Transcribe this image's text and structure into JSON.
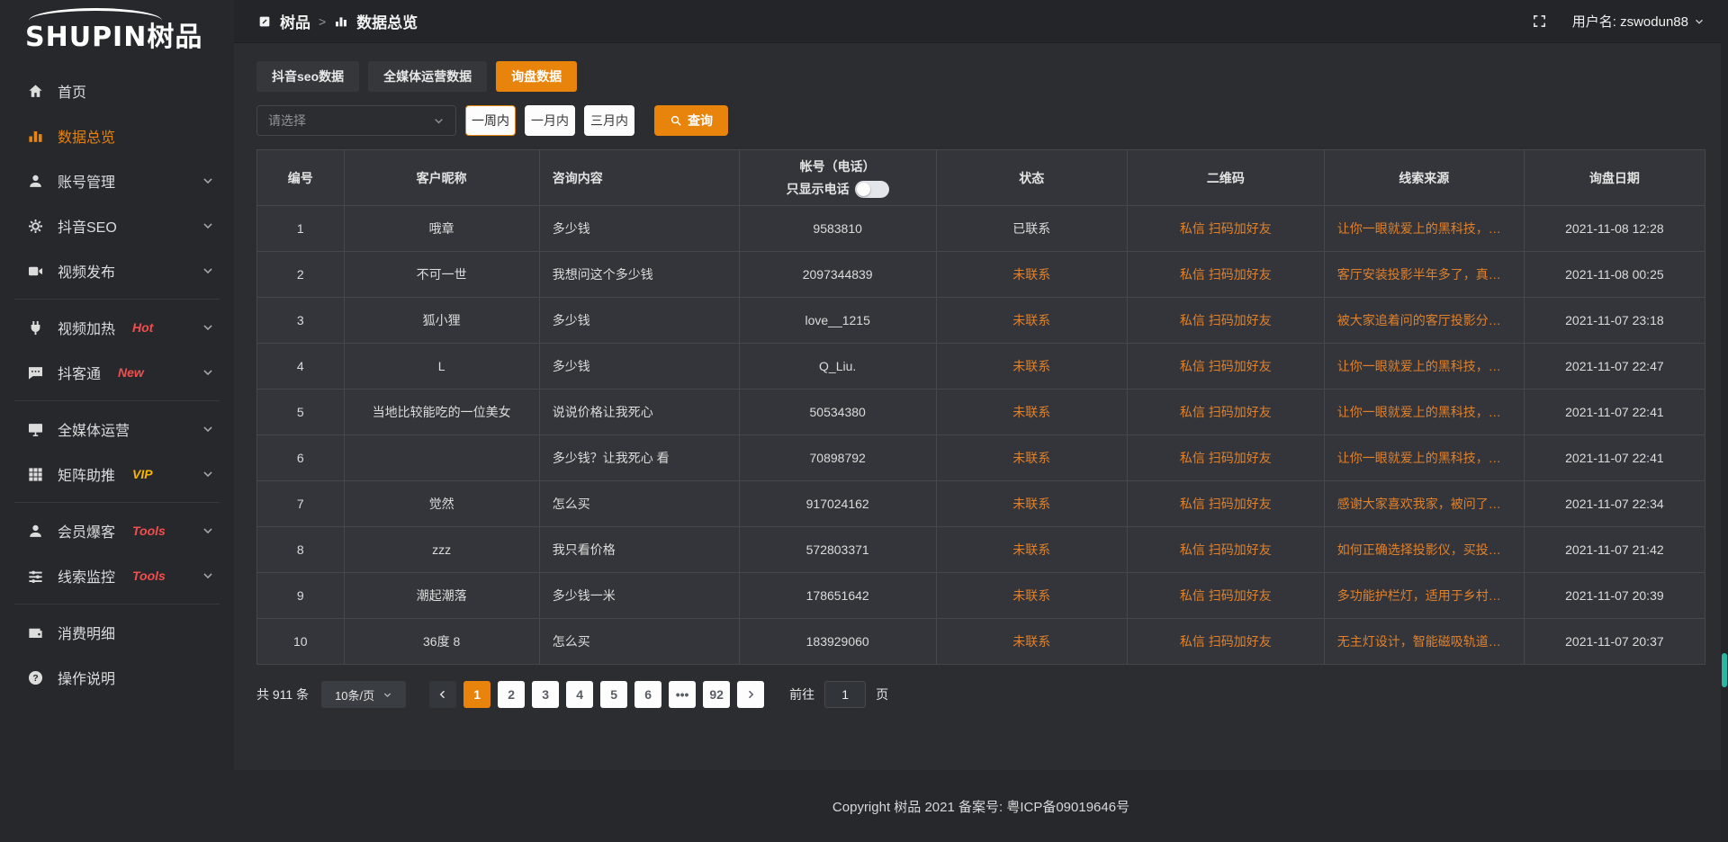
{
  "colors": {
    "accent": "#e8830c",
    "link_orange": "#e0812c",
    "hot_red": "#f24e4e",
    "vip_yellow": "#f7b500",
    "teal_scroll": "#2ab5a5"
  },
  "sidebar": {
    "logo": "SHUPIN树品",
    "items": [
      {
        "key": "home",
        "icon": "home-icon",
        "label": "首页"
      },
      {
        "key": "data-overview",
        "icon": "chart-icon",
        "label": "数据总览",
        "active": true
      },
      {
        "key": "account-manage",
        "icon": "user-icon",
        "label": "账号管理",
        "chevron": true
      },
      {
        "key": "douyin-seo",
        "icon": "gear-icon",
        "label": "抖音SEO",
        "chevron": true
      },
      {
        "key": "video-publish",
        "icon": "video-icon",
        "label": "视频发布",
        "chevron": true
      },
      {
        "divider": true
      },
      {
        "key": "video-heat",
        "icon": "plug-icon",
        "label": "视频加热",
        "badge": "Hot",
        "badge_color": "#f24e4e",
        "chevron": true
      },
      {
        "key": "douketong",
        "icon": "chat-icon",
        "label": "抖客通",
        "badge": "New",
        "badge_color": "#f24e4e",
        "chevron": true
      },
      {
        "divider": true
      },
      {
        "key": "omni-media",
        "icon": "monitor-icon",
        "label": "全媒体运营",
        "chevron": true
      },
      {
        "key": "matrix-boost",
        "icon": "grid-icon",
        "label": "矩阵助推",
        "badge": "VIP",
        "badge_color": "#f7b500",
        "chevron": true
      },
      {
        "divider": true
      },
      {
        "key": "member-baoke",
        "icon": "user-icon",
        "label": "会员爆客",
        "badge": "Tools",
        "badge_color": "#f24e4e",
        "chevron": true
      },
      {
        "key": "clue-monitor",
        "icon": "sliders-icon",
        "label": "线索监控",
        "badge": "Tools",
        "badge_color": "#f24e4e",
        "chevron": true
      },
      {
        "divider": true
      },
      {
        "key": "expense-detail",
        "icon": "wallet-icon",
        "label": "消费明细"
      },
      {
        "key": "help",
        "icon": "question-icon",
        "label": "操作说明"
      }
    ]
  },
  "topbar": {
    "breadcrumb_home": "树品",
    "breadcrumb_sep": ">",
    "breadcrumb_current": "数据总览",
    "user_label": "用户名: zswodun88"
  },
  "tabs": [
    {
      "label": "抖音seo数据"
    },
    {
      "label": "全媒体运营数据"
    },
    {
      "label": "询盘数据",
      "active": true
    }
  ],
  "filters": {
    "select_placeholder": "请选择",
    "ranges": [
      "一周内",
      "一月内",
      "三月内"
    ],
    "active_range": "一周内",
    "query_label": "查询"
  },
  "table": {
    "headers": [
      "编号",
      "客户昵称",
      "咨询内容",
      "帐号（电话）",
      "状态",
      "二维码",
      "线索来源",
      "询盘日期"
    ],
    "phone_toggle_label": "只显示电话",
    "rows": [
      {
        "id": "1",
        "nickname": "哦章",
        "content": "多少钱",
        "account": "9583810",
        "status": "已联系",
        "contacted": true,
        "qrcode": "私信 扫码加好友",
        "source": "让你一眼就爱上的黑科技，能...",
        "date": "2021-11-08 12:28"
      },
      {
        "id": "2",
        "nickname": "不可一世",
        "content": "我想问这个多少钱",
        "account": "2097344839",
        "status": "未联系",
        "contacted": false,
        "qrcode": "私信 扫码加好友",
        "source": "客厅安装投影半年多了，真实...",
        "date": "2021-11-08 00:25"
      },
      {
        "id": "3",
        "nickname": "狐小狸",
        "content": "多少钱",
        "account": "love__1215",
        "status": "未联系",
        "contacted": false,
        "qrcode": "私信 扫码加好友",
        "source": "被大家追着问的客厅投影分享...",
        "date": "2021-11-07 23:18"
      },
      {
        "id": "4",
        "nickname": "L",
        "content": "多少钱",
        "account": "Q_Liu.",
        "status": "未联系",
        "contacted": false,
        "qrcode": "私信 扫码加好友",
        "source": "让你一眼就爱上的黑科技，能...",
        "date": "2021-11-07 22:47"
      },
      {
        "id": "5",
        "nickname": "当地比较能吃的一位美女",
        "content": "说说价格让我死心",
        "account": "50534380",
        "status": "未联系",
        "contacted": false,
        "qrcode": "私信 扫码加好友",
        "source": "让你一眼就爱上的黑科技，能...",
        "date": "2021-11-07 22:41"
      },
      {
        "id": "6",
        "nickname": "",
        "content": "多少钱？让我死心 看",
        "account": "70898792",
        "status": "未联系",
        "contacted": false,
        "qrcode": "私信 扫码加好友",
        "source": "让你一眼就爱上的黑科技，能...",
        "date": "2021-11-07 22:41"
      },
      {
        "id": "7",
        "nickname": "觉然",
        "content": "怎么买",
        "account": "917024162",
        "status": "未联系",
        "contacted": false,
        "qrcode": "私信 扫码加好友",
        "source": "感谢大家喜欢我家，被问了好...",
        "date": "2021-11-07 22:34"
      },
      {
        "id": "8",
        "nickname": "zzz",
        "content": "我只看价格",
        "account": "572803371",
        "status": "未联系",
        "contacted": false,
        "qrcode": "私信 扫码加好友",
        "source": "如何正确选择投影仪，买投影...",
        "date": "2021-11-07 21:42"
      },
      {
        "id": "9",
        "nickname": "潮起潮落",
        "content": "多少钱一米",
        "account": "178651642",
        "status": "未联系",
        "contacted": false,
        "qrcode": "私信 扫码加好友",
        "source": "多功能护栏灯，适用于乡村文...",
        "date": "2021-11-07 20:39"
      },
      {
        "id": "10",
        "nickname": "36度 8",
        "content": "怎么买",
        "account": "183929060",
        "status": "未联系",
        "contacted": false,
        "qrcode": "私信 扫码加好友",
        "source": "无主灯设计，智能磁吸轨道灯...",
        "date": "2021-11-07 20:37"
      }
    ]
  },
  "pagination": {
    "total": "共 911 条",
    "page_size": "10条/页",
    "pages": [
      "1",
      "2",
      "3",
      "4",
      "5",
      "6",
      "•••",
      "92"
    ],
    "active_page": "1",
    "goto_label": "前往",
    "goto_value": "1",
    "page_suffix": "页"
  },
  "footer": {
    "copyright": "Copyright 树品 2021 备案号: 粤ICP备09019646号"
  }
}
